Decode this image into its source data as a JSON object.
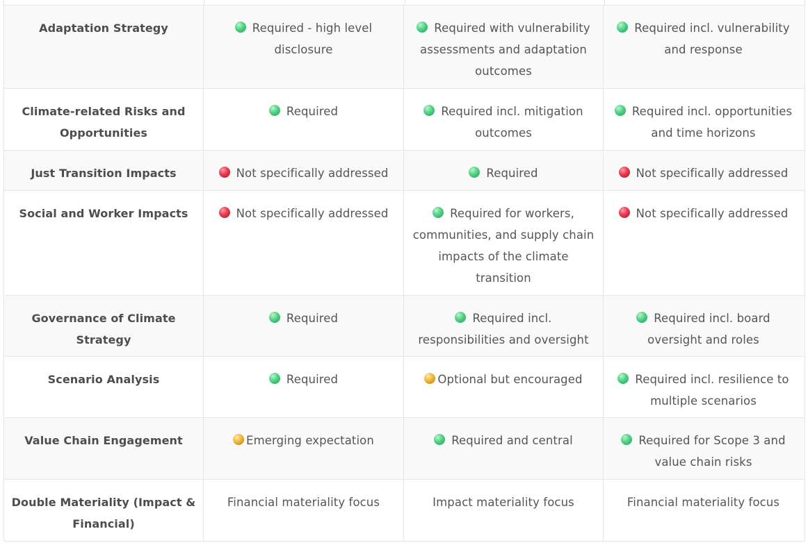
{
  "rows": [
    {
      "label": "Adaptation Strategy",
      "cells": [
        {
          "status": "green",
          "text": "Required - high level disclosure"
        },
        {
          "status": "green",
          "text": "Required with vulnerability assessments and adaptation outcomes"
        },
        {
          "status": "green",
          "text": "Required incl. vulnerability and response"
        }
      ]
    },
    {
      "label": "Climate-related Risks and Opportunities",
      "cells": [
        {
          "status": "green",
          "text": "Required"
        },
        {
          "status": "green",
          "text": "Required incl. mitigation outcomes"
        },
        {
          "status": "green",
          "text": "Required incl. opportunities and time horizons"
        }
      ]
    },
    {
      "label": "Just Transition Impacts",
      "cells": [
        {
          "status": "red",
          "text": "Not specifically addressed"
        },
        {
          "status": "green",
          "text": "Required"
        },
        {
          "status": "red",
          "text": "Not specifically addressed"
        }
      ]
    },
    {
      "label": "Social and Worker Impacts",
      "cells": [
        {
          "status": "red",
          "text": "Not specifically addressed"
        },
        {
          "status": "green",
          "text": "Required for workers, communities, and supply chain impacts of the climate transition"
        },
        {
          "status": "red",
          "text": "Not specifically addressed"
        }
      ]
    },
    {
      "label": "Governance of Climate Strategy",
      "cells": [
        {
          "status": "green",
          "text": "Required"
        },
        {
          "status": "green",
          "text": "Required incl. responsibilities and oversight"
        },
        {
          "status": "green",
          "text": "Required incl. board oversight and roles"
        }
      ]
    },
    {
      "label": "Scenario Analysis",
      "cells": [
        {
          "status": "green",
          "text": "Required"
        },
        {
          "status": "yellow",
          "text": "Optional but encouraged"
        },
        {
          "status": "green",
          "text": "Required incl. resilience to multiple scenarios"
        }
      ]
    },
    {
      "label": "Value Chain Engagement",
      "cells": [
        {
          "status": "yellow",
          "text": "Emerging expectation"
        },
        {
          "status": "green",
          "text": "Required and central"
        },
        {
          "status": "green",
          "text": "Required for Scope 3 and value chain risks"
        }
      ]
    },
    {
      "label": "Double Materiality (Impact & Financial)",
      "cells": [
        {
          "status": "",
          "text": "Financial materiality focus"
        },
        {
          "status": "",
          "text": "Impact materiality focus"
        },
        {
          "status": "",
          "text": "Financial materiality focus"
        }
      ]
    }
  ],
  "colors": {
    "green": "#3fca77",
    "red": "#e3394e",
    "yellow": "#e8b236",
    "border": "#e6e6e6",
    "row_alt": "#f9f9f9"
  }
}
